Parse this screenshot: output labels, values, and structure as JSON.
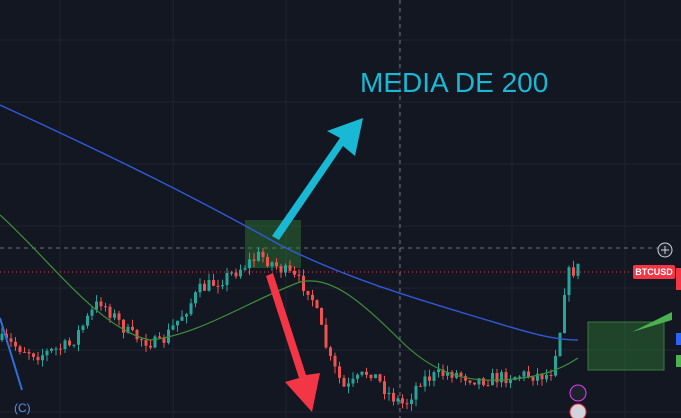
{
  "annotation": {
    "title": "MEDIA DE 200"
  },
  "price_label": "BTCUSD",
  "wave_label": "(C)"
}
